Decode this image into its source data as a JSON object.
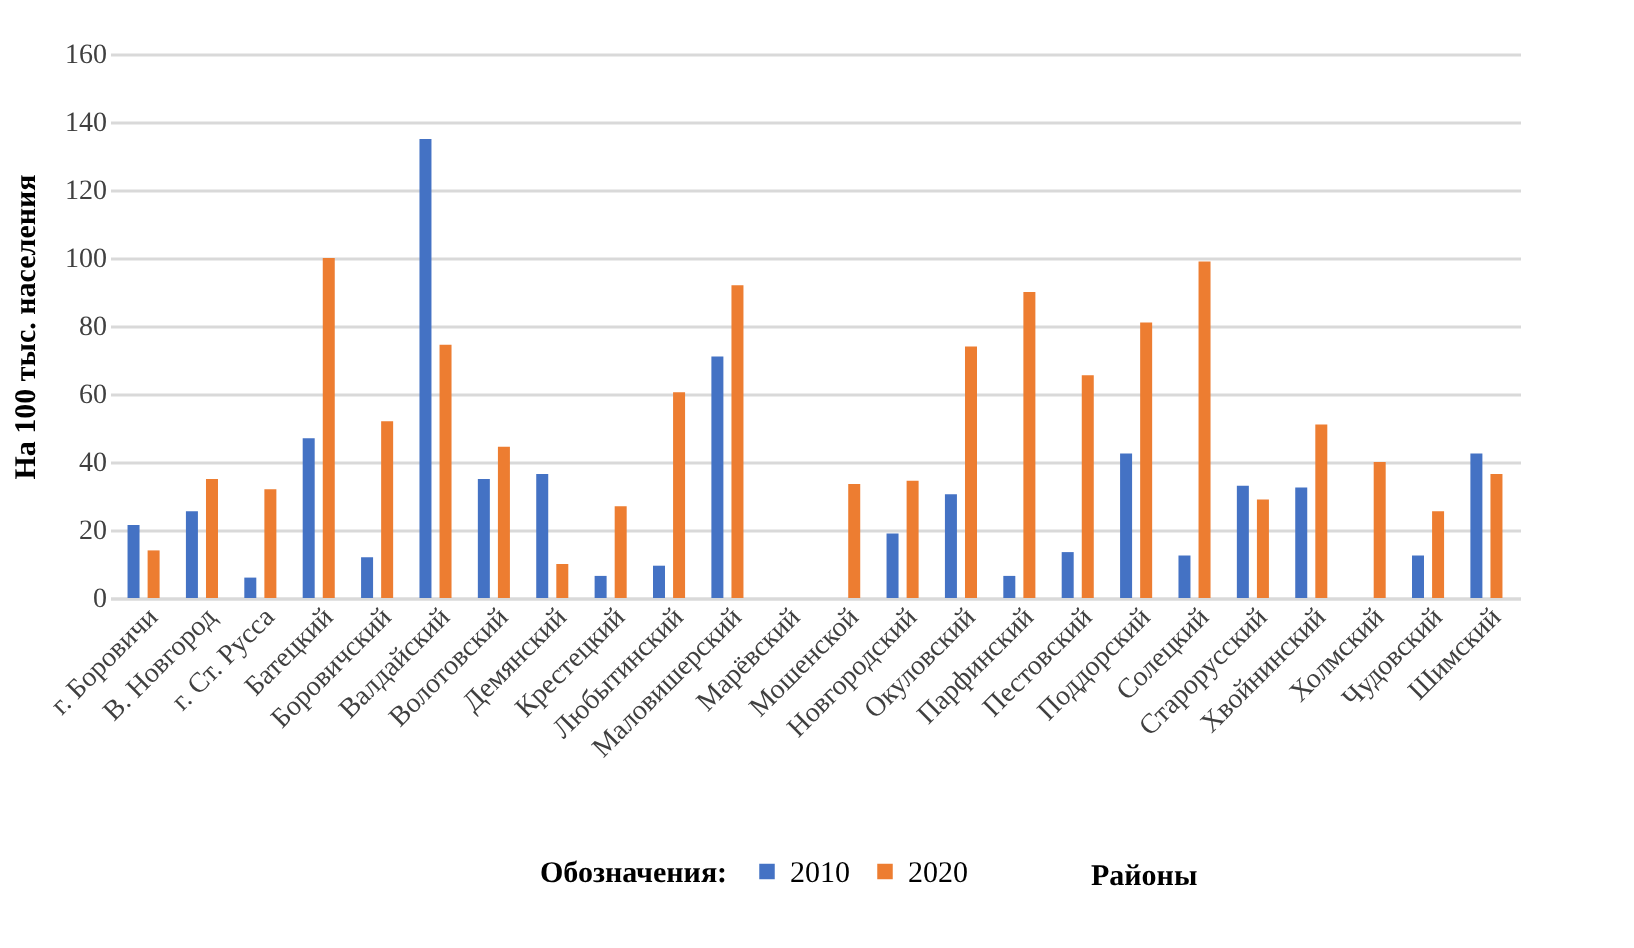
{
  "chart_data": {
    "type": "bar",
    "ylabel": "На 100 тыс. населения",
    "xlabel": "Районы",
    "legend_title": "Обозначения:",
    "categories": [
      "г. Боровичи",
      "В. Новгород",
      "г. Ст. Русса",
      "Батецкий",
      "Боровичский",
      "Валдайский",
      "Волотовский",
      "Демянский",
      "Крестецкий",
      "Любытинский",
      "Маловишерский",
      "Марёвский",
      "Мошенской",
      "Новгородский",
      "Окуловский",
      "Парфинский",
      "Пестовский",
      "Поддорский",
      "Солецкий",
      "Старорусский",
      "Хвойнинский",
      "Холмский",
      "Чудовский",
      "Шимский"
    ],
    "series": [
      {
        "name": "2010",
        "color": "#4472c4",
        "values": [
          21.5,
          25.5,
          6,
          47,
          12,
          135,
          35,
          36.5,
          6.5,
          9.5,
          71,
          null,
          null,
          19,
          30.5,
          6.5,
          13.5,
          42.5,
          12.5,
          33,
          32.5,
          null,
          12.5,
          42.5
        ]
      },
      {
        "name": "2020",
        "color": "#ed7d31",
        "values": [
          14,
          35,
          32,
          100,
          52,
          74.5,
          44.5,
          10,
          27,
          60.5,
          92,
          null,
          33.5,
          34.5,
          74,
          90,
          65.5,
          81,
          99,
          29,
          51,
          40,
          25.5,
          36.5
        ]
      }
    ],
    "ylim": [
      0,
      160
    ],
    "yticks": [
      0,
      20,
      40,
      60,
      80,
      100,
      120,
      140,
      160
    ],
    "grid": "y",
    "legend": "bottom"
  }
}
